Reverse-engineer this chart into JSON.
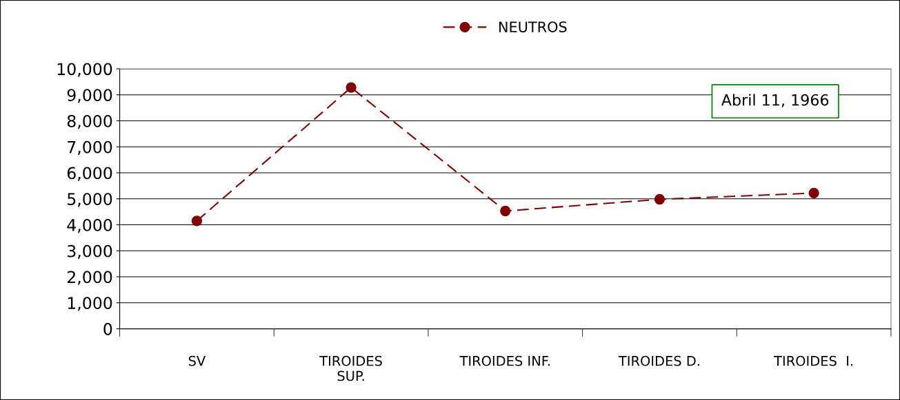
{
  "chart_data": {
    "type": "line",
    "categories": [
      "SV",
      "TIROIDES\nSUP.",
      "TIROIDES INF.",
      "TIROIDES D.",
      "TIROIDES  I."
    ],
    "series": [
      {
        "name": "NEUTROS",
        "color": "#800000",
        "values": [
          4150,
          9280,
          4530,
          4980,
          5220
        ]
      }
    ],
    "ylim": [
      0,
      10000
    ],
    "yticks": [
      {
        "value": 0,
        "label": "0"
      },
      {
        "value": 1000,
        "label": "1,000"
      },
      {
        "value": 2000,
        "label": "2,000"
      },
      {
        "value": 3000,
        "label": "3,000"
      },
      {
        "value": 4000,
        "label": "4,000"
      },
      {
        "value": 5000,
        "label": "5,000"
      },
      {
        "value": 6000,
        "label": "6,000"
      },
      {
        "value": 7000,
        "label": "7,000"
      },
      {
        "value": 8000,
        "label": "8,000"
      },
      {
        "value": 9000,
        "label": "9,000"
      },
      {
        "value": 10000,
        "label": "10,000"
      }
    ],
    "annotations": [
      "Abril 11, 1966"
    ],
    "grid": "y",
    "legend": "top",
    "marker": "circle",
    "line_style": "dashed"
  }
}
